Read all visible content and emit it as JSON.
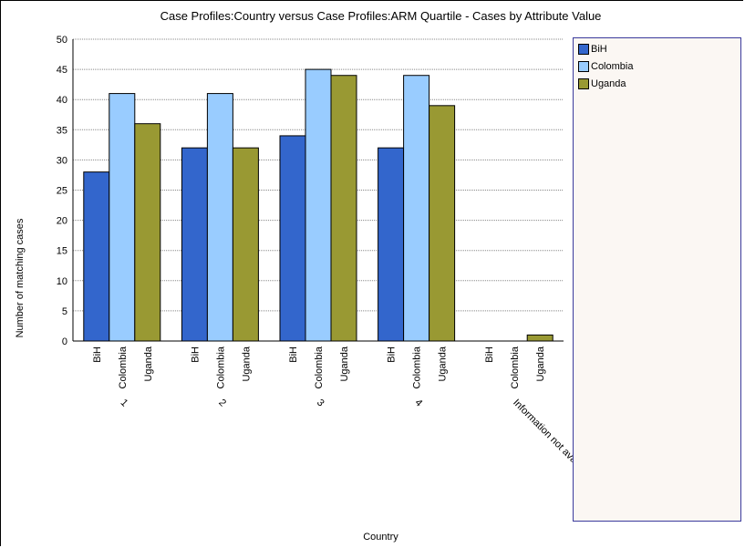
{
  "chart_data": {
    "type": "bar",
    "title": "Case Profiles:Country versus Case Profiles:ARM Quartile - Cases by Attribute Value",
    "xlabel": "Country",
    "ylabel": "Number of matching cases",
    "ylim": [
      0,
      50
    ],
    "yticks": [
      "0",
      "5",
      "10",
      "15",
      "20",
      "25",
      "30",
      "35",
      "40",
      "45",
      "50"
    ],
    "grid": true,
    "legend_position": "right",
    "groups": [
      "1",
      "2",
      "3",
      "4",
      "Information not available"
    ],
    "bar_labels": [
      "BiH",
      "Colombia",
      "Uganda"
    ],
    "series": [
      {
        "name": "BiH",
        "color": "#3366cc",
        "values": [
          28,
          32,
          34,
          32,
          0
        ]
      },
      {
        "name": "Colombia",
        "color": "#99ccff",
        "values": [
          41,
          41,
          45,
          44,
          0
        ]
      },
      {
        "name": "Uganda",
        "color": "#999933",
        "values": [
          36,
          32,
          44,
          39,
          1
        ]
      }
    ]
  }
}
